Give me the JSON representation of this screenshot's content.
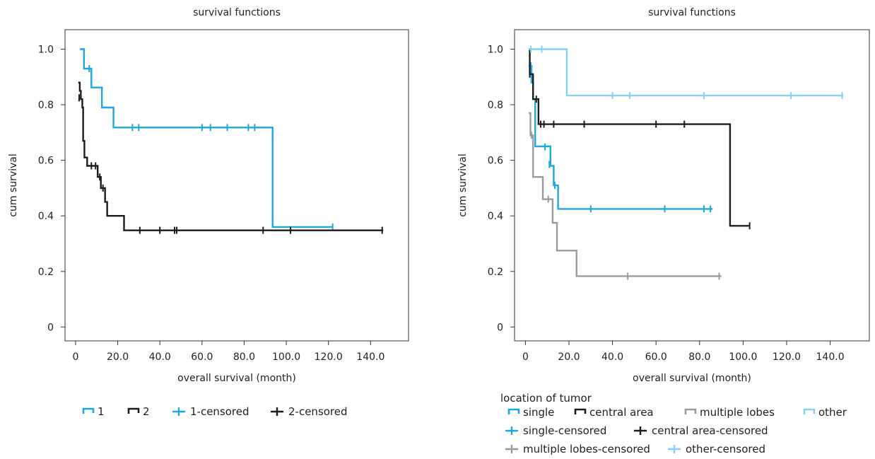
{
  "chart_data": [
    {
      "type": "line",
      "title": "survival functions",
      "xlabel": "overall survival (month)",
      "ylabel": "cum survival",
      "xlim": [
        -5,
        158
      ],
      "ylim": [
        -0.05,
        1.07
      ],
      "xticks": [
        0,
        20,
        40,
        60,
        80,
        100,
        120,
        140
      ],
      "xtick_labels": [
        "0",
        "20.0",
        "40.0",
        "60.0",
        "80.0",
        "100.0",
        "120.0",
        "140.0"
      ],
      "yticks": [
        0,
        0.2,
        0.4,
        0.6,
        0.8,
        1.0
      ],
      "ytick_labels": [
        "0",
        "0.2",
        "0.4",
        "0.6",
        "0.8",
        "1.0"
      ],
      "grid": false,
      "legend_title": "",
      "legend_placement": "bottom",
      "series": [
        {
          "name": "1",
          "color": "#1fa8df",
          "steps": [
            [
              2,
              1.0
            ],
            [
              4,
              0.93
            ],
            [
              7.5,
              0.862
            ],
            [
              12.5,
              0.79
            ],
            [
              18,
              0.718
            ],
            [
              93.5,
              0.36
            ],
            [
              122,
              0.36
            ]
          ],
          "censored": [
            [
              6.5,
              0.93
            ],
            [
              27,
              0.718
            ],
            [
              30,
              0.718
            ],
            [
              60,
              0.718
            ],
            [
              64,
              0.718
            ],
            [
              72,
              0.718
            ],
            [
              82,
              0.718
            ],
            [
              85,
              0.718
            ],
            [
              122,
              0.36
            ]
          ]
        },
        {
          "name": "2",
          "color": "#1c1c1c",
          "steps": [
            [
              1.3,
              0.88
            ],
            [
              2,
              0.85
            ],
            [
              2.5,
              0.82
            ],
            [
              3.2,
              0.79
            ],
            [
              3.6,
              0.67
            ],
            [
              4.2,
              0.61
            ],
            [
              5.5,
              0.58
            ],
            [
              10.5,
              0.54
            ],
            [
              12,
              0.5
            ],
            [
              14,
              0.45
            ],
            [
              15,
              0.4
            ],
            [
              23,
              0.348
            ],
            [
              146,
              0.348
            ]
          ],
          "censored": [
            [
              1.7,
              0.825
            ],
            [
              7.5,
              0.58
            ],
            [
              9.5,
              0.58
            ],
            [
              11.5,
              0.54
            ],
            [
              13,
              0.5
            ],
            [
              30.5,
              0.348
            ],
            [
              40,
              0.348
            ],
            [
              47,
              0.348
            ],
            [
              48,
              0.348
            ],
            [
              89,
              0.348
            ],
            [
              102,
              0.348
            ],
            [
              145.5,
              0.348
            ]
          ]
        }
      ],
      "legend": [
        {
          "label": "1",
          "kind": "step",
          "color": "#1fa8df"
        },
        {
          "label": "2",
          "kind": "step",
          "color": "#1c1c1c"
        },
        {
          "label": "1-censored",
          "kind": "cross",
          "color": "#1fa8df"
        },
        {
          "label": "2-censored",
          "kind": "cross",
          "color": "#1c1c1c"
        }
      ]
    },
    {
      "type": "line",
      "title": "survival functions",
      "xlabel": "overall survival (month)",
      "ylabel": "cum survival",
      "xlim": [
        -5,
        158
      ],
      "ylim": [
        -0.05,
        1.07
      ],
      "xticks": [
        0,
        20,
        40,
        60,
        80,
        100,
        120,
        140
      ],
      "xtick_labels": [
        "0",
        "20.0",
        "40.0",
        "60.0",
        "80.0",
        "100.0",
        "120.0",
        "140.0"
      ],
      "yticks": [
        0,
        0.2,
        0.4,
        0.6,
        0.8,
        1.0
      ],
      "ytick_labels": [
        "0",
        "0.2",
        "0.4",
        "0.6",
        "0.8",
        "1.0"
      ],
      "grid": false,
      "legend_title": "location of tumor",
      "legend_placement": "bottom",
      "series": [
        {
          "name": "single",
          "color": "#1fa8df",
          "steps": [
            [
              1.5,
              0.94
            ],
            [
              2.8,
              0.88
            ],
            [
              3.5,
              0.82
            ],
            [
              4.5,
              0.65
            ],
            [
              11.5,
              0.58
            ],
            [
              13,
              0.51
            ],
            [
              15,
              0.425
            ],
            [
              86,
              0.425
            ]
          ],
          "censored": [
            [
              2.5,
              0.94
            ],
            [
              9,
              0.648
            ],
            [
              11,
              0.585
            ],
            [
              13.5,
              0.51
            ],
            [
              30,
              0.425
            ],
            [
              64,
              0.425
            ],
            [
              82,
              0.425
            ],
            [
              85,
              0.425
            ]
          ]
        },
        {
          "name": "central area",
          "color": "#1c1c1c",
          "steps": [
            [
              1.5,
              1.0
            ],
            [
              2,
              0.91
            ],
            [
              3.5,
              0.82
            ],
            [
              6,
              0.73
            ],
            [
              94,
              0.364
            ],
            [
              103,
              0.364
            ]
          ],
          "censored": [
            [
              2,
              0.91
            ],
            [
              5,
              0.82
            ],
            [
              7,
              0.73
            ],
            [
              8.5,
              0.73
            ],
            [
              13,
              0.73
            ],
            [
              27,
              0.73
            ],
            [
              60,
              0.73
            ],
            [
              73,
              0.73
            ],
            [
              103,
              0.364
            ]
          ]
        },
        {
          "name": "multiple lobes",
          "color": "#9b9b9b",
          "steps": [
            [
              1.5,
              0.77
            ],
            [
              2.3,
              0.69
            ],
            [
              3.5,
              0.54
            ],
            [
              8,
              0.46
            ],
            [
              12.5,
              0.375
            ],
            [
              14.5,
              0.275
            ],
            [
              23.5,
              0.183
            ],
            [
              90,
              0.183
            ]
          ],
          "censored": [
            [
              2.8,
              0.69
            ],
            [
              10.5,
              0.46
            ],
            [
              47,
              0.183
            ],
            [
              89,
              0.183
            ]
          ]
        },
        {
          "name": "other",
          "color": "#86d2f3",
          "steps": [
            [
              1.5,
              1.0
            ],
            [
              19,
              0.833
            ],
            [
              146,
              0.833
            ]
          ],
          "censored": [
            [
              2.5,
              1.0
            ],
            [
              7.5,
              1.0
            ],
            [
              40,
              0.833
            ],
            [
              48,
              0.833
            ],
            [
              82,
              0.833
            ],
            [
              122,
              0.833
            ],
            [
              145.5,
              0.833
            ]
          ]
        }
      ],
      "legend": [
        {
          "label": "single",
          "kind": "step",
          "color": "#1fa8df"
        },
        {
          "label": "central area",
          "kind": "step",
          "color": "#1c1c1c"
        },
        {
          "label": "multiple lobes",
          "kind": "step",
          "color": "#9b9b9b"
        },
        {
          "label": "other",
          "kind": "step",
          "color": "#86d2f3"
        },
        {
          "label": "single-censored",
          "kind": "cross",
          "color": "#1fa8df"
        },
        {
          "label": "central area-censored",
          "kind": "cross",
          "color": "#1c1c1c"
        },
        {
          "label": "multiple lobes-censored",
          "kind": "cross",
          "color": "#9b9b9b"
        },
        {
          "label": "other-censored",
          "kind": "cross",
          "color": "#86d2f3"
        }
      ]
    }
  ]
}
